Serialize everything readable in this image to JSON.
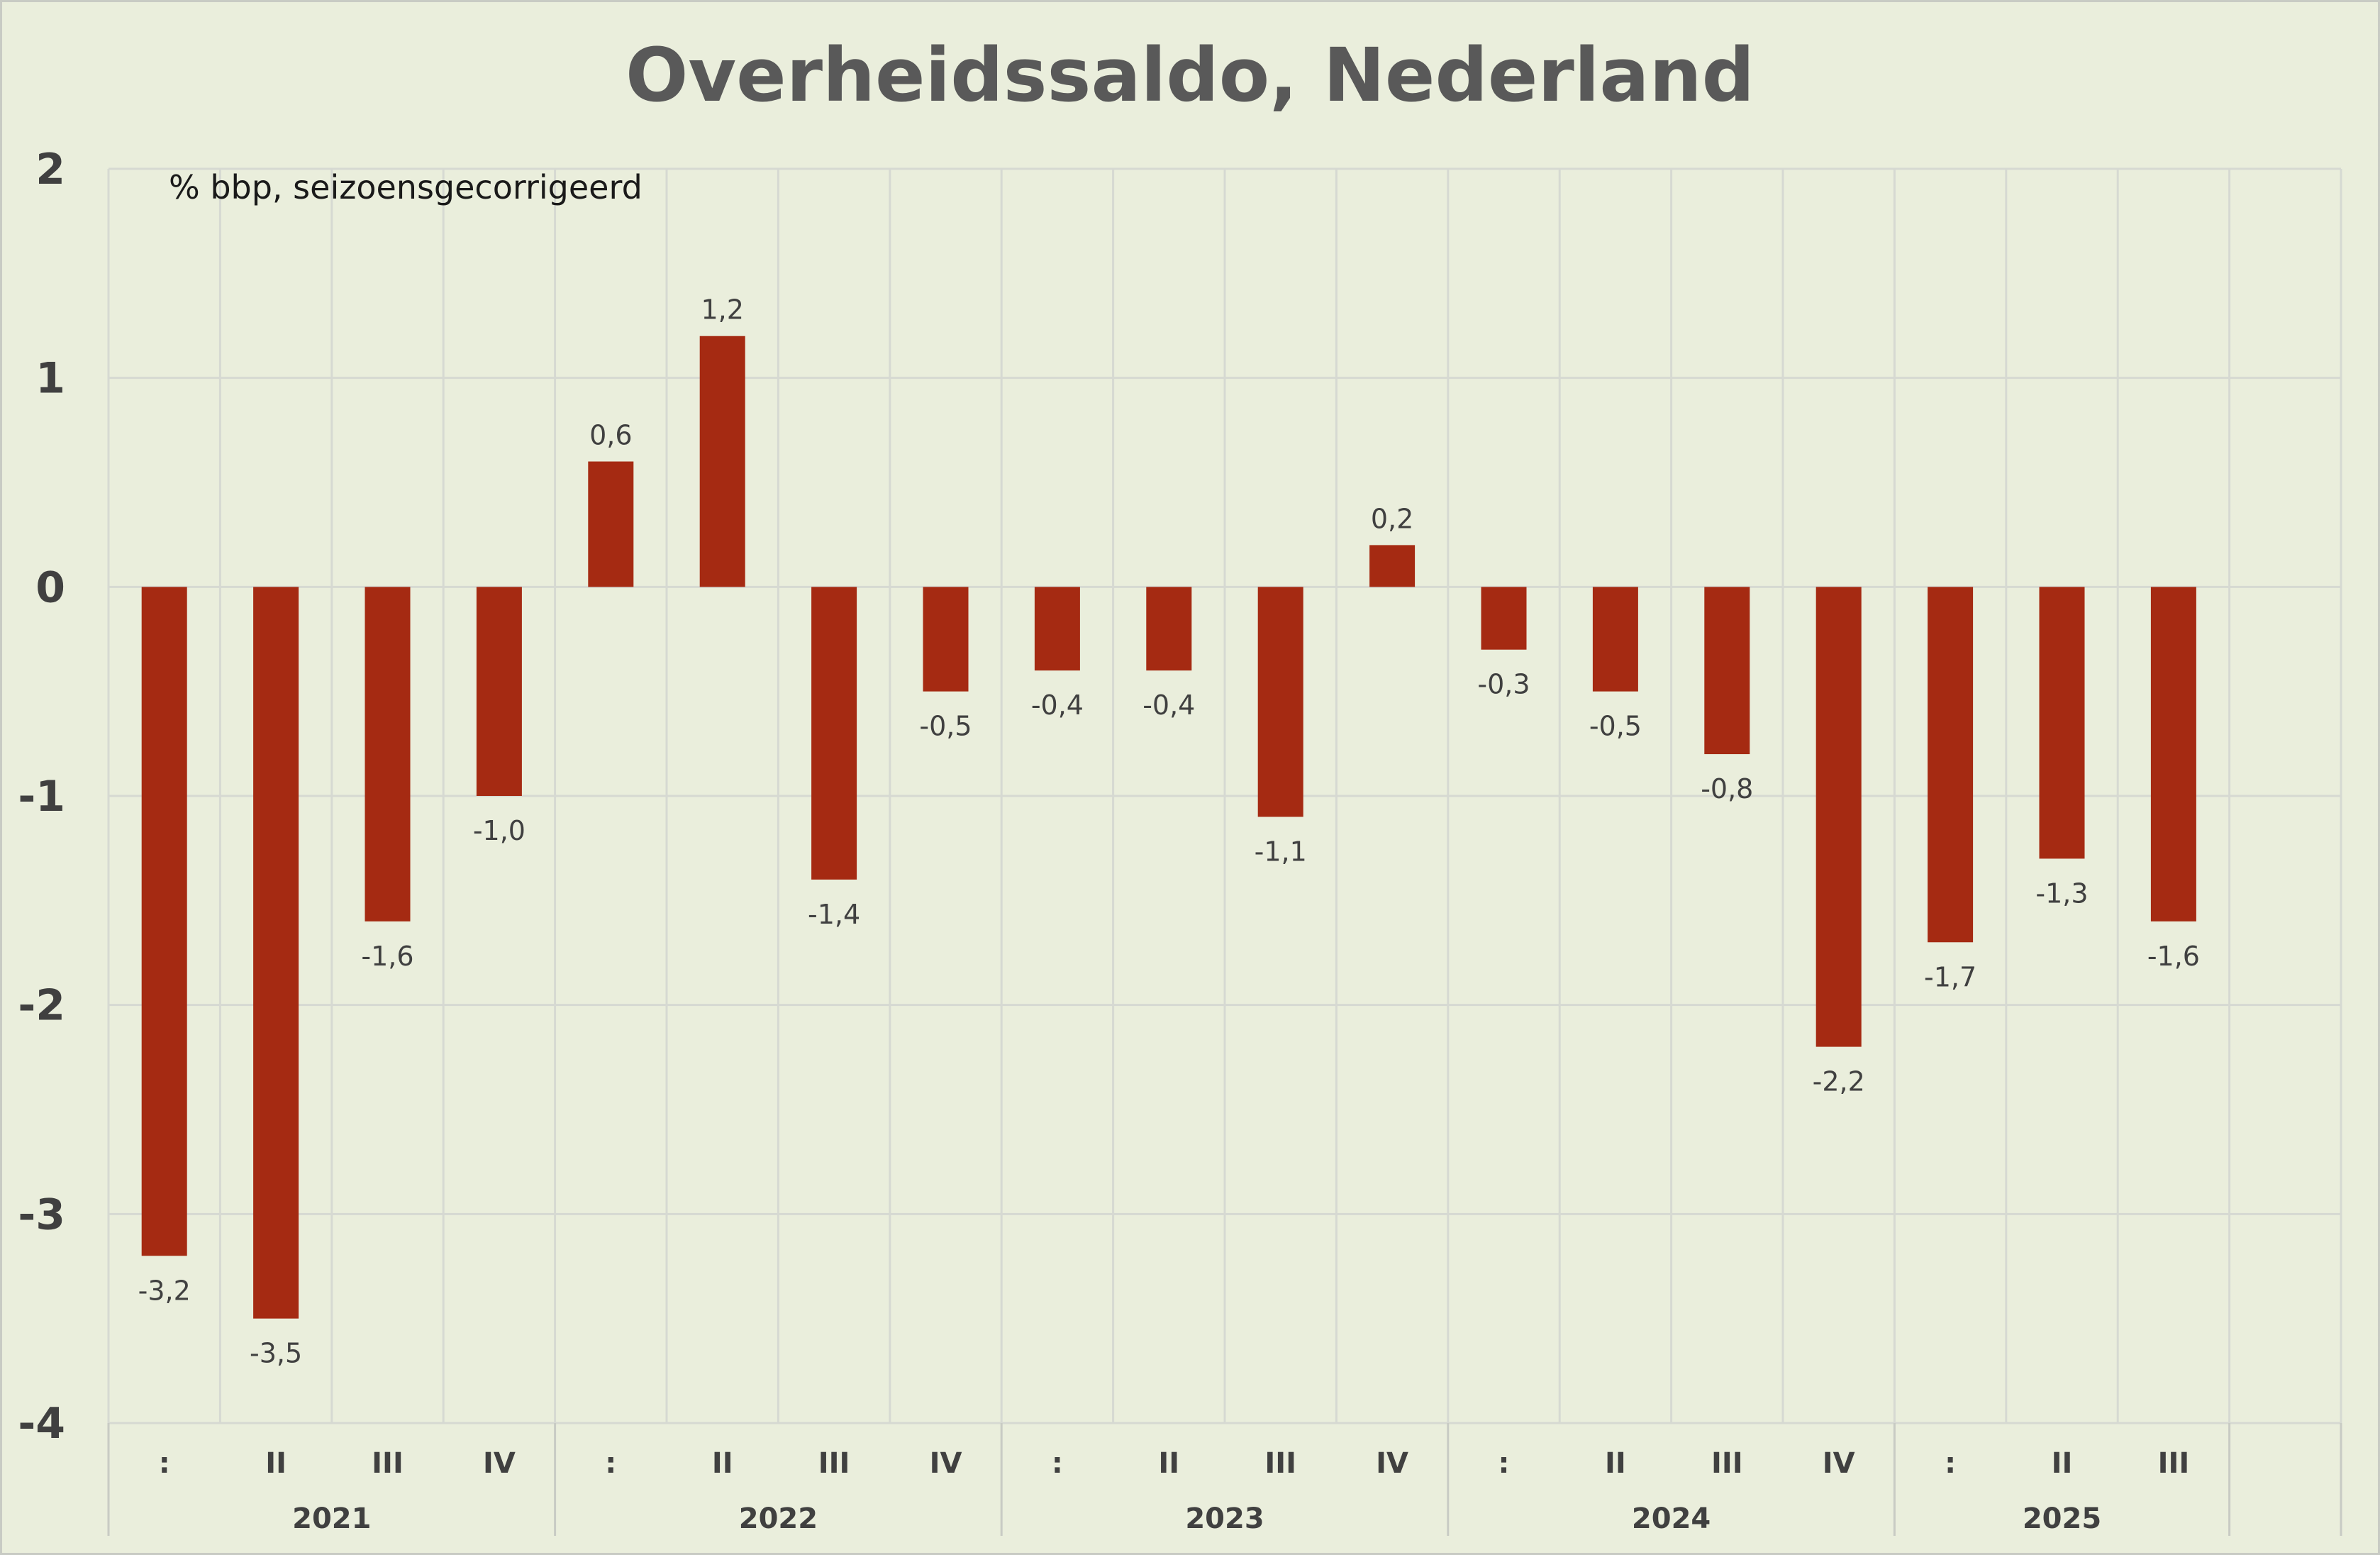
{
  "chart_data": {
    "type": "bar",
    "title": "Overheidssaldo, Nederland",
    "subtitle": "% bbp, seizoensgecorrigeerd",
    "xlabel": "",
    "ylabel": "",
    "ylim": [
      -4,
      2
    ],
    "yticks": [
      "2",
      "1",
      "0",
      "-1",
      "-2",
      "-3",
      "-4"
    ],
    "yticks_values": [
      2,
      1,
      0,
      -1,
      -2,
      -3,
      -4
    ],
    "categories": [
      ":",
      "II",
      "III",
      "IV",
      ":",
      "II",
      "III",
      "IV",
      ":",
      "II",
      "III",
      "IV",
      ":",
      "II",
      "III",
      "IV",
      ":",
      "II",
      "III"
    ],
    "groups": [
      {
        "label": "2021",
        "count": 4
      },
      {
        "label": "2022",
        "count": 4
      },
      {
        "label": "2023",
        "count": 4
      },
      {
        "label": "2024",
        "count": 4
      },
      {
        "label": "2025",
        "count": 3
      }
    ],
    "values": [
      -3.2,
      -3.5,
      -1.6,
      -1.0,
      0.6,
      1.2,
      -1.4,
      -0.5,
      -0.4,
      -0.4,
      -1.1,
      0.2,
      -0.3,
      -0.5,
      -0.8,
      -2.2,
      -1.7,
      -1.3,
      -1.6
    ],
    "data_labels": [
      "-3,2",
      "-3,5",
      "-1,6",
      "-1,0",
      "0,6",
      "1,2",
      "-1,4",
      "-0,5",
      "-0,4",
      "-0,4",
      "-1,1",
      "0,2",
      "-0,3",
      "-0,5",
      "-0,8",
      "-2,2",
      "-1,7",
      "-1,3",
      "-1,6"
    ],
    "total_slots": 20,
    "grid": true,
    "legend": "none",
    "bar_color": "#A52A12"
  }
}
